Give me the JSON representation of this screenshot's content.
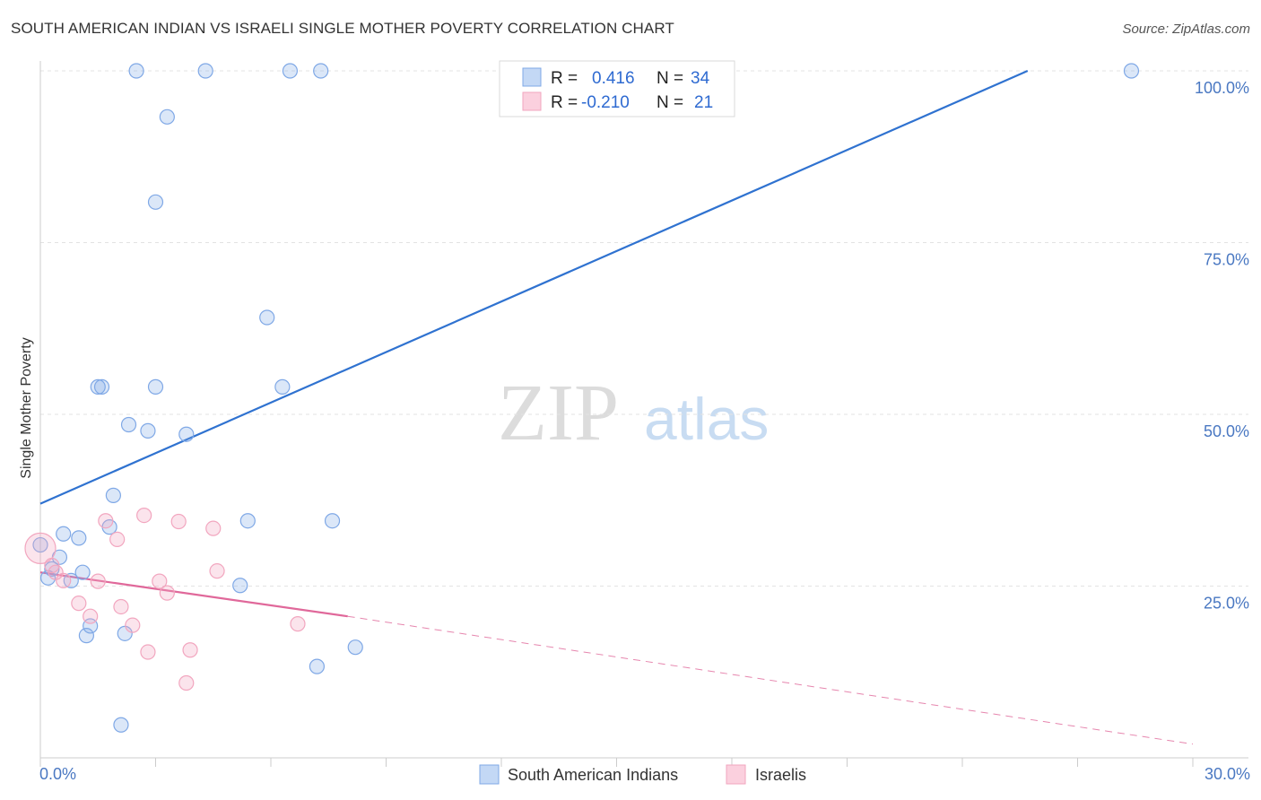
{
  "chart_data": {
    "type": "scatter",
    "title": "SOUTH AMERICAN INDIAN VS ISRAELI SINGLE MOTHER POVERTY CORRELATION CHART",
    "source": "Source: ZipAtlas.com",
    "xlabel": "",
    "ylabel": "Single Mother Poverty",
    "xlim": [
      0,
      30
    ],
    "ylim": [
      0,
      100
    ],
    "x_tick_labels": [
      "0.0%",
      "30.0%"
    ],
    "y_ticks": [
      {
        "value": 100,
        "label": "100.0%"
      },
      {
        "value": 75,
        "label": "75.0%"
      },
      {
        "value": 50,
        "label": "50.0%"
      },
      {
        "value": 25,
        "label": "25.0%"
      }
    ],
    "watermark": {
      "zip": "ZIP",
      "atlas": "atlas"
    },
    "legend": [
      {
        "r_label": "R =",
        "r_value": "0.416",
        "n_label": "N =",
        "n_value": "34"
      },
      {
        "r_label": "R =",
        "r_value": "-0.210",
        "n_label": "N =",
        "n_value": "21"
      }
    ],
    "series": [
      {
        "name": "South American Indians",
        "color": "#7fa8e6",
        "line_color": "#2f72d0",
        "points": [
          [
            2.5,
            100
          ],
          [
            4.3,
            100
          ],
          [
            6.5,
            100
          ],
          [
            7.3,
            100
          ],
          [
            28.4,
            100
          ],
          [
            3.3,
            93.3
          ],
          [
            3.0,
            80.9
          ],
          [
            5.9,
            64.1
          ],
          [
            1.5,
            54.0
          ],
          [
            1.6,
            54.0
          ],
          [
            3.0,
            54.0
          ],
          [
            6.3,
            54.0
          ],
          [
            2.3,
            48.5
          ],
          [
            2.8,
            47.6
          ],
          [
            3.8,
            47.1
          ],
          [
            1.9,
            38.2
          ],
          [
            5.4,
            34.5
          ],
          [
            7.6,
            34.5
          ],
          [
            1.8,
            33.6
          ],
          [
            0.6,
            32.6
          ],
          [
            1.0,
            32.0
          ],
          [
            0.0,
            31.0
          ],
          [
            0.5,
            29.2
          ],
          [
            1.1,
            27.0
          ],
          [
            0.8,
            25.8
          ],
          [
            0.2,
            26.2
          ],
          [
            5.2,
            25.1
          ],
          [
            1.3,
            19.2
          ],
          [
            1.2,
            17.8
          ],
          [
            2.2,
            18.1
          ],
          [
            8.2,
            16.1
          ],
          [
            7.2,
            13.3
          ],
          [
            2.1,
            4.8
          ],
          [
            0.3,
            27.5
          ]
        ],
        "trend": {
          "x0": 0,
          "y0": 37.0,
          "x1": 25.7,
          "y1": 100
        }
      },
      {
        "name": "Israelis",
        "color": "#f2a6bf",
        "line_color": "#e0689a",
        "points": [
          [
            0.0,
            30.5
          ],
          [
            0.3,
            28.0
          ],
          [
            0.6,
            25.8
          ],
          [
            1.5,
            25.7
          ],
          [
            1.7,
            34.5
          ],
          [
            2.0,
            31.8
          ],
          [
            2.7,
            35.3
          ],
          [
            3.6,
            34.4
          ],
          [
            4.5,
            33.4
          ],
          [
            3.1,
            25.7
          ],
          [
            3.3,
            24.0
          ],
          [
            4.6,
            27.2
          ],
          [
            1.0,
            22.5
          ],
          [
            2.1,
            22.0
          ],
          [
            1.3,
            20.6
          ],
          [
            2.4,
            19.3
          ],
          [
            6.7,
            19.5
          ],
          [
            2.8,
            15.4
          ],
          [
            3.9,
            15.7
          ],
          [
            3.8,
            10.9
          ],
          [
            0.4,
            27.0
          ]
        ],
        "trend": {
          "x0": 0,
          "y0": 27.0,
          "x1": 8.0,
          "y1": 20.6
        },
        "trend_dashed": {
          "x0": 8.0,
          "y0": 20.6,
          "x1": 30,
          "y1": 2.0
        }
      }
    ]
  }
}
